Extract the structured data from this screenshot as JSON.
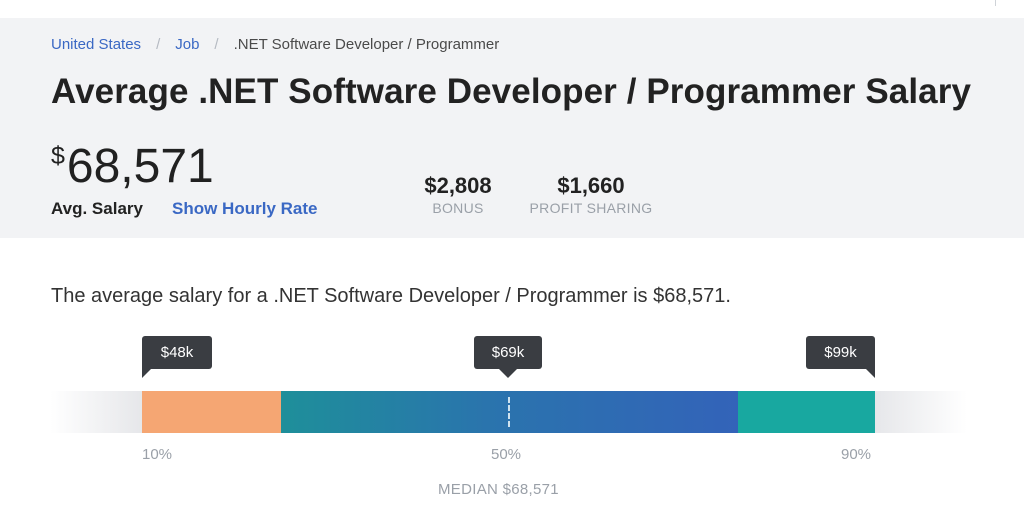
{
  "breadcrumb": {
    "items": [
      "United States",
      "Job",
      ".NET Software Developer / Programmer"
    ],
    "separator": "/"
  },
  "title": "Average .NET Software Developer / Programmer Salary",
  "avg_salary": {
    "currency": "$",
    "amount": "68,571",
    "label": "Avg. Salary",
    "hourly_link": "Show Hourly Rate"
  },
  "stats": [
    {
      "value": "$2,808",
      "label": "BONUS"
    },
    {
      "value": "$1,660",
      "label": "PROFIT SHARING"
    }
  ],
  "summary": "The average salary for a .NET Software Developer / Programmer is $68,571.",
  "salary_range": {
    "tooltips": [
      "$48k",
      "$69k",
      "$99k"
    ],
    "percentiles": [
      "10%",
      "50%",
      "90%"
    ],
    "median_label": "MEDIAN $68,571",
    "colors": {
      "low": "#f5a673",
      "mid_start": "#1e8f9a",
      "mid_end": "#3363b9",
      "high": "#18a8a0"
    }
  }
}
